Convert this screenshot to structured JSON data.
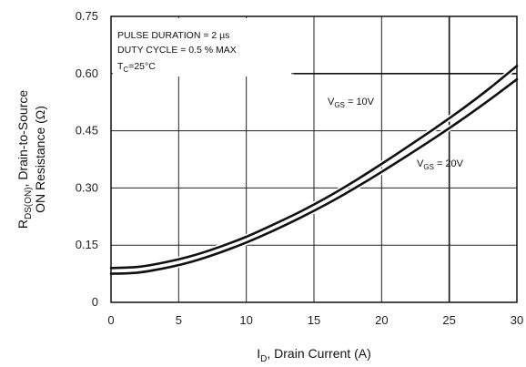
{
  "chart_data": {
    "type": "line",
    "title": "",
    "xlabel": {
      "main": "I",
      "sub": "D",
      "rest": ", Drain Current (A)"
    },
    "ylabel": {
      "line1_pre": "R",
      "line1_sub": "DS(ON)",
      "line1_rest": ", Drain-to-Source",
      "line2": "ON Resistance (Ω)"
    },
    "xlim": [
      0,
      30
    ],
    "ylim": [
      0,
      0.75
    ],
    "x_ticks": [
      "0",
      "5",
      "10",
      "15",
      "20",
      "25",
      "30"
    ],
    "y_ticks": [
      "0",
      "0.15",
      "0.30",
      "0.45",
      "0.60",
      "0.75"
    ],
    "grid": true,
    "annotations": {
      "pulse": "PULSE DURATION = 2 µs",
      "duty": "DUTY CYCLE = 0.5 % MAX",
      "tc_main": "T",
      "tc_sub": "C",
      "tc_rest": "=25°C"
    },
    "reference_line": {
      "x_from": 13.5,
      "y": 0.6
    },
    "series": [
      {
        "label": {
          "main": "V",
          "sub": "GS",
          "rest": " = 10V"
        },
        "x": [
          0,
          2,
          4,
          6,
          8,
          10,
          12,
          14,
          16,
          18,
          20,
          22,
          24,
          26,
          28,
          30
        ],
        "y": [
          0.09,
          0.093,
          0.105,
          0.122,
          0.145,
          0.172,
          0.204,
          0.238,
          0.276,
          0.318,
          0.363,
          0.41,
          0.458,
          0.508,
          0.562,
          0.62
        ]
      },
      {
        "label": {
          "main": "V",
          "sub": "GS",
          "rest": " = 20V"
        },
        "x": [
          0,
          2,
          4,
          6,
          8,
          10,
          12,
          14,
          16,
          18,
          20,
          22,
          24,
          26,
          28,
          30
        ],
        "y": [
          0.075,
          0.078,
          0.09,
          0.107,
          0.13,
          0.157,
          0.188,
          0.222,
          0.259,
          0.299,
          0.342,
          0.387,
          0.433,
          0.481,
          0.532,
          0.585
        ]
      }
    ]
  }
}
